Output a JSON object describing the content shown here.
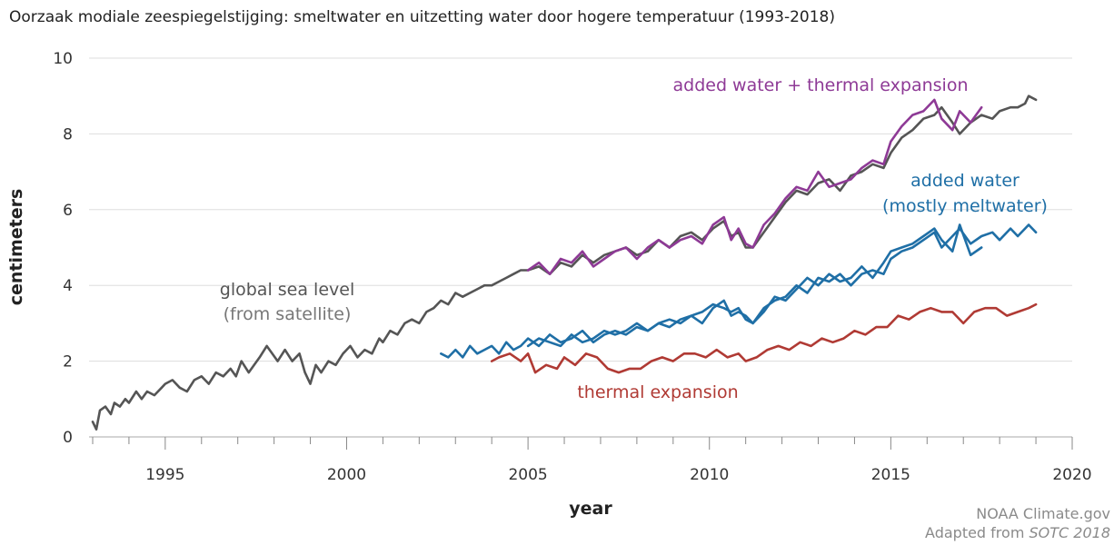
{
  "chart_data": {
    "type": "line",
    "title": "Oorzaak modiale zeespiegelstijging: smeltwater en uitzetting water door hogere temperatuur (1993-2018)",
    "xlabel": "year",
    "ylabel": "centimeters",
    "xlim": [
      1992.9,
      2020
    ],
    "ylim": [
      0,
      10
    ],
    "x_ticks": [
      1995,
      2000,
      2005,
      2010,
      2015,
      2020
    ],
    "y_ticks": [
      0,
      2,
      4,
      6,
      8,
      10
    ],
    "grid": "horizontal",
    "colors": {
      "sea_level": "#555555",
      "combined": "#8e3a96",
      "added_water": "#1f6fa6",
      "thermal": "#b03a34",
      "grid": "#dddddd"
    },
    "annotations": {
      "sea_level": [
        "global sea level",
        "(from satellite)"
      ],
      "combined": [
        "added water + thermal expansion"
      ],
      "added_water": [
        "added water",
        "(mostly meltwater)"
      ],
      "thermal": [
        "thermal expansion"
      ]
    },
    "credit": [
      "NOAA Climate.gov",
      "Adapted from ",
      "SOTC 2018"
    ],
    "series": [
      {
        "id": "sea_level",
        "x": [
          1993.0,
          1993.1,
          1993.2,
          1993.35,
          1993.5,
          1993.6,
          1993.75,
          1993.9,
          1994.0,
          1994.2,
          1994.35,
          1994.5,
          1994.7,
          1994.9,
          1995.0,
          1995.2,
          1995.4,
          1995.6,
          1995.8,
          1996.0,
          1996.2,
          1996.4,
          1996.6,
          1996.8,
          1996.95,
          1997.1,
          1997.3,
          1997.45,
          1997.6,
          1997.8,
          1997.95,
          1998.1,
          1998.3,
          1998.5,
          1998.7,
          1998.85,
          1999.0,
          1999.15,
          1999.3,
          1999.5,
          1999.7,
          1999.9,
          2000.1,
          2000.3,
          2000.5,
          2000.7,
          2000.9,
          2001.0,
          2001.2,
          2001.4,
          2001.6,
          2001.8,
          2002.0,
          2002.2,
          2002.4,
          2002.6,
          2002.8,
          2003.0,
          2003.2,
          2003.4,
          2003.6,
          2003.8,
          2004.0,
          2004.2,
          2004.4,
          2004.6,
          2004.8,
          2005.0,
          2005.3,
          2005.6,
          2005.9,
          2006.2,
          2006.5,
          2006.8,
          2007.1,
          2007.4,
          2007.7,
          2008.0,
          2008.3,
          2008.6,
          2008.9,
          2009.2,
          2009.5,
          2009.8,
          2010.1,
          2010.4,
          2010.6,
          2010.8,
          2011.0,
          2011.2,
          2011.5,
          2011.8,
          2012.1,
          2012.4,
          2012.7,
          2013.0,
          2013.3,
          2013.6,
          2013.9,
          2014.2,
          2014.5,
          2014.8,
          2015.0,
          2015.3,
          2015.6,
          2015.9,
          2016.2,
          2016.4,
          2016.7,
          2016.9,
          2017.2,
          2017.5,
          2017.8,
          2018.0,
          2018.3,
          2018.5,
          2018.7,
          2018.8,
          2019.0
        ],
        "y": [
          0.4,
          0.2,
          0.7,
          0.8,
          0.6,
          0.9,
          0.8,
          1.0,
          0.9,
          1.2,
          1.0,
          1.2,
          1.1,
          1.3,
          1.4,
          1.5,
          1.3,
          1.2,
          1.5,
          1.6,
          1.4,
          1.7,
          1.6,
          1.8,
          1.6,
          2.0,
          1.7,
          1.9,
          2.1,
          2.4,
          2.2,
          2.0,
          2.3,
          2.0,
          2.2,
          1.7,
          1.4,
          1.9,
          1.7,
          2.0,
          1.9,
          2.2,
          2.4,
          2.1,
          2.3,
          2.2,
          2.6,
          2.5,
          2.8,
          2.7,
          3.0,
          3.1,
          3.0,
          3.3,
          3.4,
          3.6,
          3.5,
          3.8,
          3.7,
          3.8,
          3.9,
          4.0,
          4.0,
          4.1,
          4.2,
          4.3,
          4.4,
          4.4,
          4.5,
          4.3,
          4.6,
          4.5,
          4.8,
          4.6,
          4.8,
          4.9,
          5.0,
          4.8,
          4.9,
          5.2,
          5.0,
          5.3,
          5.4,
          5.2,
          5.5,
          5.7,
          5.3,
          5.4,
          5.0,
          5.0,
          5.4,
          5.8,
          6.2,
          6.5,
          6.4,
          6.7,
          6.8,
          6.5,
          6.9,
          7.0,
          7.2,
          7.1,
          7.5,
          7.9,
          8.1,
          8.4,
          8.5,
          8.7,
          8.3,
          8.0,
          8.3,
          8.5,
          8.4,
          8.6,
          8.7,
          8.7,
          8.8,
          9.0,
          8.9
        ]
      },
      {
        "id": "combined",
        "x": [
          2005.0,
          2005.3,
          2005.6,
          2005.9,
          2006.2,
          2006.5,
          2006.8,
          2007.1,
          2007.4,
          2007.7,
          2008.0,
          2008.3,
          2008.6,
          2008.9,
          2009.2,
          2009.5,
          2009.8,
          2010.1,
          2010.4,
          2010.6,
          2010.8,
          2011.0,
          2011.2,
          2011.5,
          2011.8,
          2012.1,
          2012.4,
          2012.7,
          2013.0,
          2013.3,
          2013.6,
          2013.9,
          2014.2,
          2014.5,
          2014.8,
          2015.0,
          2015.3,
          2015.6,
          2015.9,
          2016.2,
          2016.4,
          2016.7,
          2016.9,
          2017.2,
          2017.5
        ],
        "y": [
          4.4,
          4.6,
          4.3,
          4.7,
          4.6,
          4.9,
          4.5,
          4.7,
          4.9,
          5.0,
          4.7,
          5.0,
          5.2,
          5.0,
          5.2,
          5.3,
          5.1,
          5.6,
          5.8,
          5.2,
          5.5,
          5.1,
          5.0,
          5.6,
          5.9,
          6.3,
          6.6,
          6.5,
          7.0,
          6.6,
          6.7,
          6.8,
          7.1,
          7.3,
          7.2,
          7.8,
          8.2,
          8.5,
          8.6,
          8.9,
          8.4,
          8.1,
          8.6,
          8.3,
          8.7
        ]
      },
      {
        "id": "added_water_a",
        "x": [
          2002.6,
          2002.8,
          2003.0,
          2003.2,
          2003.4,
          2003.6,
          2003.8,
          2004.0,
          2004.2,
          2004.4,
          2004.6,
          2004.8,
          2005.0,
          2005.3,
          2005.6,
          2005.9,
          2006.2,
          2006.5,
          2006.8,
          2007.1,
          2007.4,
          2007.7,
          2008.0,
          2008.3,
          2008.6,
          2008.9,
          2009.2,
          2009.5,
          2009.8,
          2010.1,
          2010.4,
          2010.6,
          2010.8,
          2011.0,
          2011.2,
          2011.5,
          2011.8,
          2012.1,
          2012.4,
          2012.7,
          2013.0,
          2013.3,
          2013.6,
          2013.9,
          2014.2,
          2014.5,
          2014.8,
          2015.0,
          2015.3,
          2015.6,
          2015.9,
          2016.2,
          2016.4,
          2016.7,
          2016.9,
          2017.2,
          2017.5,
          2017.8,
          2018.0,
          2018.3,
          2018.5,
          2018.8,
          2019.0
        ],
        "y": [
          2.2,
          2.1,
          2.3,
          2.1,
          2.4,
          2.2,
          2.3,
          2.4,
          2.2,
          2.5,
          2.3,
          2.4,
          2.6,
          2.4,
          2.7,
          2.5,
          2.6,
          2.8,
          2.5,
          2.7,
          2.8,
          2.7,
          2.9,
          2.8,
          3.0,
          2.9,
          3.1,
          3.2,
          3.0,
          3.4,
          3.6,
          3.2,
          3.3,
          3.2,
          3.0,
          3.4,
          3.6,
          3.7,
          4.0,
          3.8,
          4.2,
          4.1,
          4.3,
          4.0,
          4.3,
          4.4,
          4.3,
          4.7,
          4.9,
          5.0,
          5.2,
          5.4,
          5.0,
          5.3,
          5.5,
          5.1,
          5.3,
          5.4,
          5.2,
          5.5,
          5.3,
          5.6,
          5.4
        ]
      },
      {
        "id": "added_water_b",
        "x": [
          2005.0,
          2005.3,
          2005.6,
          2005.9,
          2006.2,
          2006.5,
          2006.8,
          2007.1,
          2007.4,
          2007.7,
          2008.0,
          2008.3,
          2008.6,
          2008.9,
          2009.2,
          2009.5,
          2009.8,
          2010.1,
          2010.4,
          2010.6,
          2010.8,
          2011.0,
          2011.2,
          2011.5,
          2011.8,
          2012.1,
          2012.4,
          2012.7,
          2013.0,
          2013.3,
          2013.6,
          2013.9,
          2014.2,
          2014.5,
          2014.8,
          2015.0,
          2015.3,
          2015.6,
          2015.9,
          2016.2,
          2016.4,
          2016.7,
          2016.9,
          2017.2,
          2017.5
        ],
        "y": [
          2.4,
          2.6,
          2.5,
          2.4,
          2.7,
          2.5,
          2.6,
          2.8,
          2.7,
          2.8,
          3.0,
          2.8,
          3.0,
          3.1,
          3.0,
          3.2,
          3.3,
          3.5,
          3.4,
          3.3,
          3.4,
          3.1,
          3.0,
          3.3,
          3.7,
          3.6,
          3.9,
          4.2,
          4.0,
          4.3,
          4.1,
          4.2,
          4.5,
          4.2,
          4.6,
          4.9,
          5.0,
          5.1,
          5.3,
          5.5,
          5.2,
          4.9,
          5.6,
          4.8,
          5.0
        ]
      },
      {
        "id": "thermal",
        "x": [
          2004.0,
          2004.2,
          2004.5,
          2004.8,
          2005.0,
          2005.2,
          2005.5,
          2005.8,
          2006.0,
          2006.3,
          2006.6,
          2006.9,
          2007.2,
          2007.5,
          2007.8,
          2008.1,
          2008.4,
          2008.7,
          2009.0,
          2009.3,
          2009.6,
          2009.9,
          2010.2,
          2010.5,
          2010.8,
          2011.0,
          2011.3,
          2011.6,
          2011.9,
          2012.2,
          2012.5,
          2012.8,
          2013.1,
          2013.4,
          2013.7,
          2014.0,
          2014.3,
          2014.6,
          2014.9,
          2015.2,
          2015.5,
          2015.8,
          2016.1,
          2016.4,
          2016.7,
          2017.0,
          2017.3,
          2017.6,
          2017.9,
          2018.2,
          2018.5,
          2018.8,
          2019.0
        ],
        "y": [
          2.0,
          2.1,
          2.2,
          2.0,
          2.2,
          1.7,
          1.9,
          1.8,
          2.1,
          1.9,
          2.2,
          2.1,
          1.8,
          1.7,
          1.8,
          1.8,
          2.0,
          2.1,
          2.0,
          2.2,
          2.2,
          2.1,
          2.3,
          2.1,
          2.2,
          2.0,
          2.1,
          2.3,
          2.4,
          2.3,
          2.5,
          2.4,
          2.6,
          2.5,
          2.6,
          2.8,
          2.7,
          2.9,
          2.9,
          3.2,
          3.1,
          3.3,
          3.4,
          3.3,
          3.3,
          3.0,
          3.3,
          3.4,
          3.4,
          3.2,
          3.3,
          3.4,
          3.5
        ]
      }
    ]
  }
}
